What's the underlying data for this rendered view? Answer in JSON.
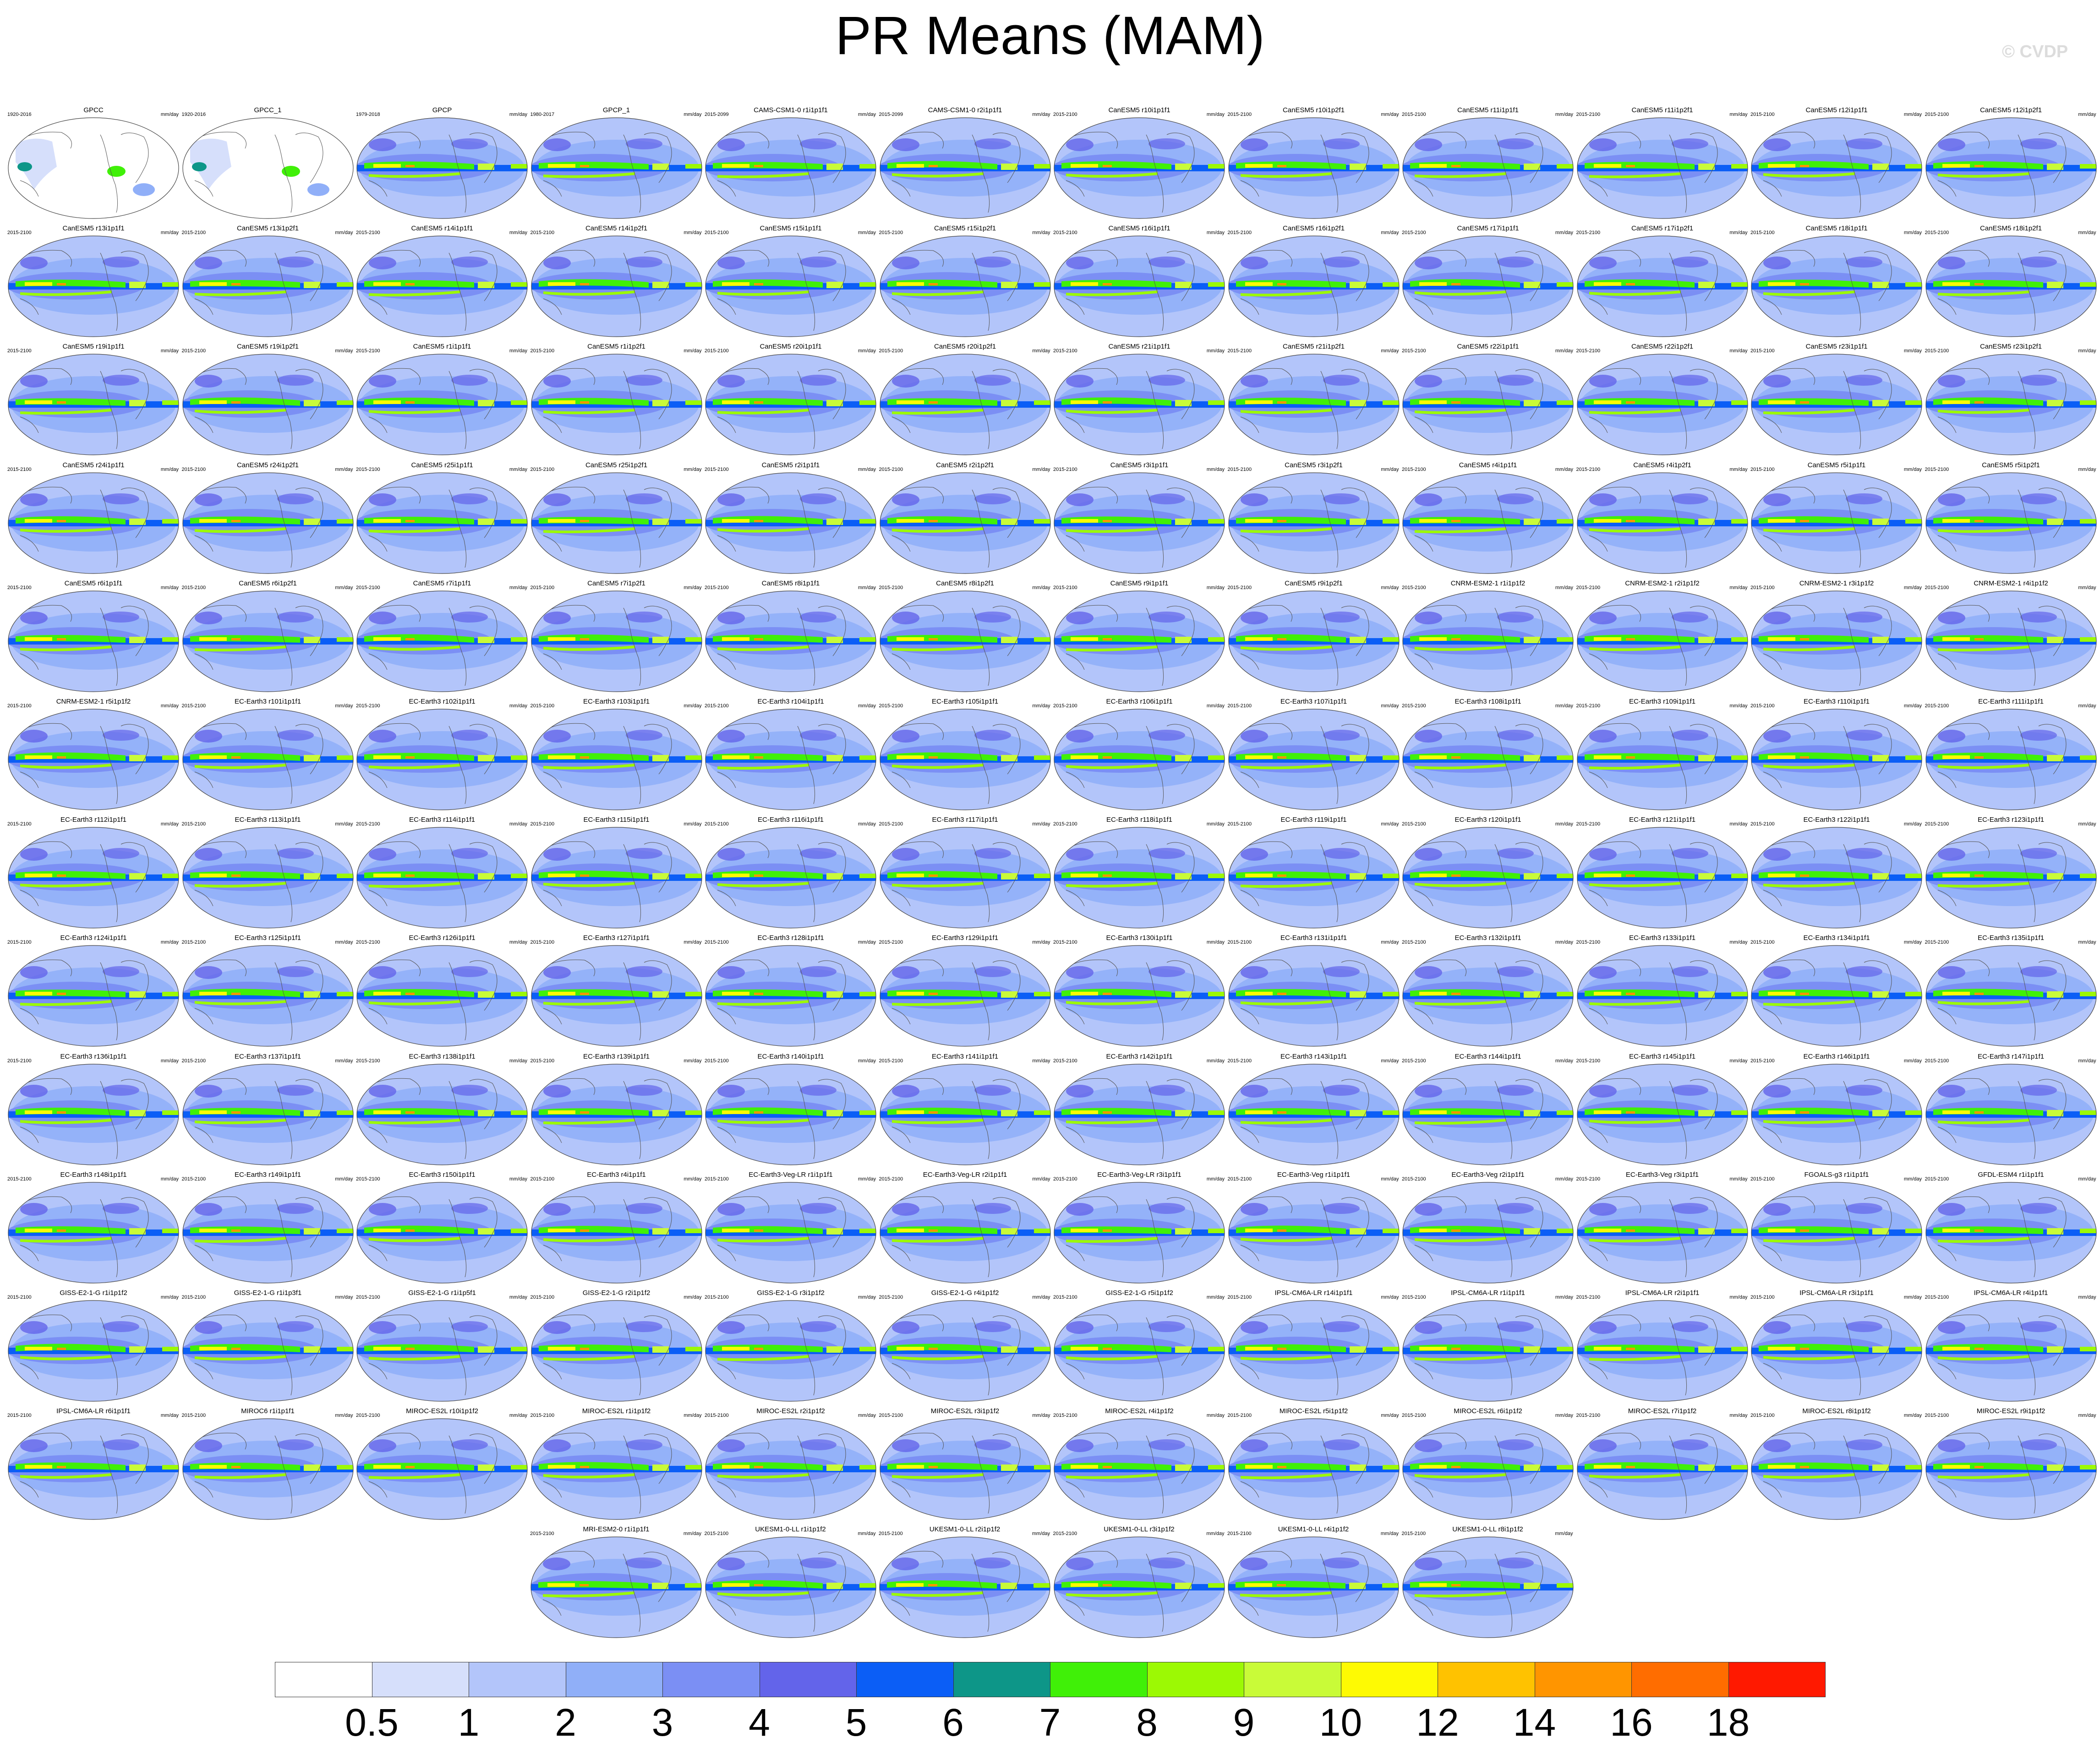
{
  "title": "PR Means (MAM)",
  "watermark": "© CVDP",
  "chart_data": {
    "type": "heatmap",
    "title": "PR Means (MAM)",
    "units": "mm/day",
    "projection": "global map grid of precipitation means",
    "colorbar": {
      "levels": [
        "0.5",
        "1",
        "2",
        "3",
        "4",
        "5",
        "6",
        "7",
        "8",
        "9",
        "10",
        "12",
        "14",
        "16",
        "18"
      ],
      "colors": [
        "#ffffff",
        "#d6dffb",
        "#b3c5fa",
        "#90aff8",
        "#7b8ff4",
        "#6364ea",
        "#0b5ef6",
        "#0d9688",
        "#40f008",
        "#9cf904",
        "#c9fb38",
        "#fefa03",
        "#ffc200",
        "#ff9500",
        "#ff6d00",
        "#ff1900"
      ]
    },
    "panels": [
      {
        "title": "GPCC",
        "years": "1920-2016",
        "units": "mm/day"
      },
      {
        "title": "GPCC_1",
        "years": "1920-2016",
        "units": ""
      },
      {
        "title": "GPCP",
        "years": "1979-2018",
        "units": "mm/day"
      },
      {
        "title": "GPCP_1",
        "years": "1980-2017",
        "units": "mm/day"
      },
      {
        "title": "CAMS-CSM1-0 r1i1p1f1",
        "years": "2015-2099",
        "units": "mm/day"
      },
      {
        "title": "CAMS-CSM1-0 r2i1p1f1",
        "years": "2015-2099",
        "units": "mm/day"
      },
      {
        "title": "CanESM5 r10i1p1f1",
        "years": "2015-2100",
        "units": "mm/day"
      },
      {
        "title": "CanESM5 r10i1p2f1",
        "years": "2015-2100",
        "units": "mm/day"
      },
      {
        "title": "CanESM5 r11i1p1f1",
        "years": "2015-2100",
        "units": "mm/day"
      },
      {
        "title": "CanESM5 r11i1p2f1",
        "years": "2015-2100",
        "units": "mm/day"
      },
      {
        "title": "CanESM5 r12i1p1f1",
        "years": "2015-2100",
        "units": "mm/day"
      },
      {
        "title": "CanESM5 r12i1p2f1",
        "years": "2015-2100",
        "units": "mm/day"
      },
      {
        "title": "CanESM5 r13i1p1f1",
        "years": "2015-2100",
        "units": "mm/day"
      },
      {
        "title": "CanESM5 r13i1p2f1",
        "years": "2015-2100",
        "units": "mm/day"
      },
      {
        "title": "CanESM5 r14i1p1f1",
        "years": "2015-2100",
        "units": "mm/day"
      },
      {
        "title": "CanESM5 r14i1p2f1",
        "years": "2015-2100",
        "units": "mm/day"
      },
      {
        "title": "CanESM5 r15i1p1f1",
        "years": "2015-2100",
        "units": "mm/day"
      },
      {
        "title": "CanESM5 r15i1p2f1",
        "years": "2015-2100",
        "units": "mm/day"
      },
      {
        "title": "CanESM5 r16i1p1f1",
        "years": "2015-2100",
        "units": "mm/day"
      },
      {
        "title": "CanESM5 r16i1p2f1",
        "years": "2015-2100",
        "units": "mm/day"
      },
      {
        "title": "CanESM5 r17i1p1f1",
        "years": "2015-2100",
        "units": "mm/day"
      },
      {
        "title": "CanESM5 r17i1p2f1",
        "years": "2015-2100",
        "units": "mm/day"
      },
      {
        "title": "CanESM5 r18i1p1f1",
        "years": "2015-2100",
        "units": "mm/day"
      },
      {
        "title": "CanESM5 r18i1p2f1",
        "years": "2015-2100",
        "units": "mm/day"
      },
      {
        "title": "CanESM5 r19i1p1f1",
        "years": "2015-2100",
        "units": "mm/day"
      },
      {
        "title": "CanESM5 r19i1p2f1",
        "years": "2015-2100",
        "units": "mm/day"
      },
      {
        "title": "CanESM5 r1i1p1f1",
        "years": "2015-2100",
        "units": "mm/day"
      },
      {
        "title": "CanESM5 r1i1p2f1",
        "years": "2015-2100",
        "units": "mm/day"
      },
      {
        "title": "CanESM5 r20i1p1f1",
        "years": "2015-2100",
        "units": "mm/day"
      },
      {
        "title": "CanESM5 r20i1p2f1",
        "years": "2015-2100",
        "units": "mm/day"
      },
      {
        "title": "CanESM5 r21i1p1f1",
        "years": "2015-2100",
        "units": "mm/day"
      },
      {
        "title": "CanESM5 r21i1p2f1",
        "years": "2015-2100",
        "units": "mm/day"
      },
      {
        "title": "CanESM5 r22i1p1f1",
        "years": "2015-2100",
        "units": "mm/day"
      },
      {
        "title": "CanESM5 r22i1p2f1",
        "years": "2015-2100",
        "units": "mm/day"
      },
      {
        "title": "CanESM5 r23i1p1f1",
        "years": "2015-2100",
        "units": "mm/day"
      },
      {
        "title": "CanESM5 r23i1p2f1",
        "years": "2015-2100",
        "units": "mm/day"
      },
      {
        "title": "CanESM5 r24i1p1f1",
        "years": "2015-2100",
        "units": "mm/day"
      },
      {
        "title": "CanESM5 r24i1p2f1",
        "years": "2015-2100",
        "units": "mm/day"
      },
      {
        "title": "CanESM5 r25i1p1f1",
        "years": "2015-2100",
        "units": "mm/day"
      },
      {
        "title": "CanESM5 r25i1p2f1",
        "years": "2015-2100",
        "units": "mm/day"
      },
      {
        "title": "CanESM5 r2i1p1f1",
        "years": "2015-2100",
        "units": "mm/day"
      },
      {
        "title": "CanESM5 r2i1p2f1",
        "years": "2015-2100",
        "units": "mm/day"
      },
      {
        "title": "CanESM5 r3i1p1f1",
        "years": "2015-2100",
        "units": "mm/day"
      },
      {
        "title": "CanESM5 r3i1p2f1",
        "years": "2015-2100",
        "units": "mm/day"
      },
      {
        "title": "CanESM5 r4i1p1f1",
        "years": "2015-2100",
        "units": "mm/day"
      },
      {
        "title": "CanESM5 r4i1p2f1",
        "years": "2015-2100",
        "units": "mm/day"
      },
      {
        "title": "CanESM5 r5i1p1f1",
        "years": "2015-2100",
        "units": "mm/day"
      },
      {
        "title": "CanESM5 r5i1p2f1",
        "years": "2015-2100",
        "units": "mm/day"
      },
      {
        "title": "CanESM5 r6i1p1f1",
        "years": "2015-2100",
        "units": "mm/day"
      },
      {
        "title": "CanESM5 r6i1p2f1",
        "years": "2015-2100",
        "units": "mm/day"
      },
      {
        "title": "CanESM5 r7i1p1f1",
        "years": "2015-2100",
        "units": "mm/day"
      },
      {
        "title": "CanESM5 r7i1p2f1",
        "years": "2015-2100",
        "units": "mm/day"
      },
      {
        "title": "CanESM5 r8i1p1f1",
        "years": "2015-2100",
        "units": "mm/day"
      },
      {
        "title": "CanESM5 r8i1p2f1",
        "years": "2015-2100",
        "units": "mm/day"
      },
      {
        "title": "CanESM5 r9i1p1f1",
        "years": "2015-2100",
        "units": "mm/day"
      },
      {
        "title": "CanESM5 r9i1p2f1",
        "years": "2015-2100",
        "units": "mm/day"
      },
      {
        "title": "CNRM-ESM2-1 r1i1p1f2",
        "years": "2015-2100",
        "units": "mm/day"
      },
      {
        "title": "CNRM-ESM2-1 r2i1p1f2",
        "years": "2015-2100",
        "units": "mm/day"
      },
      {
        "title": "CNRM-ESM2-1 r3i1p1f2",
        "years": "2015-2100",
        "units": "mm/day"
      },
      {
        "title": "CNRM-ESM2-1 r4i1p1f2",
        "years": "2015-2100",
        "units": "mm/day"
      },
      {
        "title": "CNRM-ESM2-1 r5i1p1f2",
        "years": "2015-2100",
        "units": "mm/day"
      },
      {
        "title": "EC-Earth3 r101i1p1f1",
        "years": "2015-2100",
        "units": "mm/day"
      },
      {
        "title": "EC-Earth3 r102i1p1f1",
        "years": "2015-2100",
        "units": "mm/day"
      },
      {
        "title": "EC-Earth3 r103i1p1f1",
        "years": "2015-2100",
        "units": "mm/day"
      },
      {
        "title": "EC-Earth3 r104i1p1f1",
        "years": "2015-2100",
        "units": "mm/day"
      },
      {
        "title": "EC-Earth3 r105i1p1f1",
        "years": "2015-2100",
        "units": "mm/day"
      },
      {
        "title": "EC-Earth3 r106i1p1f1",
        "years": "2015-2100",
        "units": "mm/day"
      },
      {
        "title": "EC-Earth3 r107i1p1f1",
        "years": "2015-2100",
        "units": "mm/day"
      },
      {
        "title": "EC-Earth3 r108i1p1f1",
        "years": "2015-2100",
        "units": "mm/day"
      },
      {
        "title": "EC-Earth3 r109i1p1f1",
        "years": "2015-2100",
        "units": "mm/day"
      },
      {
        "title": "EC-Earth3 r110i1p1f1",
        "years": "2015-2100",
        "units": "mm/day"
      },
      {
        "title": "EC-Earth3 r111i1p1f1",
        "years": "2015-2100",
        "units": "mm/day"
      },
      {
        "title": "EC-Earth3 r112i1p1f1",
        "years": "2015-2100",
        "units": "mm/day"
      },
      {
        "title": "EC-Earth3 r113i1p1f1",
        "years": "2015-2100",
        "units": "mm/day"
      },
      {
        "title": "EC-Earth3 r114i1p1f1",
        "years": "2015-2100",
        "units": "mm/day"
      },
      {
        "title": "EC-Earth3 r115i1p1f1",
        "years": "2015-2100",
        "units": "mm/day"
      },
      {
        "title": "EC-Earth3 r116i1p1f1",
        "years": "2015-2100",
        "units": "mm/day"
      },
      {
        "title": "EC-Earth3 r117i1p1f1",
        "years": "2015-2100",
        "units": "mm/day"
      },
      {
        "title": "EC-Earth3 r118i1p1f1",
        "years": "2015-2100",
        "units": "mm/day"
      },
      {
        "title": "EC-Earth3 r119i1p1f1",
        "years": "2015-2100",
        "units": "mm/day"
      },
      {
        "title": "EC-Earth3 r120i1p1f1",
        "years": "2015-2100",
        "units": "mm/day"
      },
      {
        "title": "EC-Earth3 r121i1p1f1",
        "years": "2015-2100",
        "units": "mm/day"
      },
      {
        "title": "EC-Earth3 r122i1p1f1",
        "years": "2015-2100",
        "units": "mm/day"
      },
      {
        "title": "EC-Earth3 r123i1p1f1",
        "years": "2015-2100",
        "units": "mm/day"
      },
      {
        "title": "EC-Earth3 r124i1p1f1",
        "years": "2015-2100",
        "units": "mm/day"
      },
      {
        "title": "EC-Earth3 r125i1p1f1",
        "years": "2015-2100",
        "units": "mm/day"
      },
      {
        "title": "EC-Earth3 r126i1p1f1",
        "years": "2015-2100",
        "units": "mm/day"
      },
      {
        "title": "EC-Earth3 r127i1p1f1",
        "years": "2015-2100",
        "units": "mm/day"
      },
      {
        "title": "EC-Earth3 r128i1p1f1",
        "years": "2015-2100",
        "units": "mm/day"
      },
      {
        "title": "EC-Earth3 r129i1p1f1",
        "years": "2015-2100",
        "units": "mm/day"
      },
      {
        "title": "EC-Earth3 r130i1p1f1",
        "years": "2015-2100",
        "units": "mm/day"
      },
      {
        "title": "EC-Earth3 r131i1p1f1",
        "years": "2015-2100",
        "units": "mm/day"
      },
      {
        "title": "EC-Earth3 r132i1p1f1",
        "years": "2015-2100",
        "units": "mm/day"
      },
      {
        "title": "EC-Earth3 r133i1p1f1",
        "years": "2015-2100",
        "units": "mm/day"
      },
      {
        "title": "EC-Earth3 r134i1p1f1",
        "years": "2015-2100",
        "units": "mm/day"
      },
      {
        "title": "EC-Earth3 r135i1p1f1",
        "years": "2015-2100",
        "units": "mm/day"
      },
      {
        "title": "EC-Earth3 r136i1p1f1",
        "years": "2015-2100",
        "units": "mm/day"
      },
      {
        "title": "EC-Earth3 r137i1p1f1",
        "years": "2015-2100",
        "units": "mm/day"
      },
      {
        "title": "EC-Earth3 r138i1p1f1",
        "years": "2015-2100",
        "units": "mm/day"
      },
      {
        "title": "EC-Earth3 r139i1p1f1",
        "years": "2015-2100",
        "units": "mm/day"
      },
      {
        "title": "EC-Earth3 r140i1p1f1",
        "years": "2015-2100",
        "units": "mm/day"
      },
      {
        "title": "EC-Earth3 r141i1p1f1",
        "years": "2015-2100",
        "units": "mm/day"
      },
      {
        "title": "EC-Earth3 r142i1p1f1",
        "years": "2015-2100",
        "units": "mm/day"
      },
      {
        "title": "EC-Earth3 r143i1p1f1",
        "years": "2015-2100",
        "units": "mm/day"
      },
      {
        "title": "EC-Earth3 r144i1p1f1",
        "years": "2015-2100",
        "units": "mm/day"
      },
      {
        "title": "EC-Earth3 r145i1p1f1",
        "years": "2015-2100",
        "units": "mm/day"
      },
      {
        "title": "EC-Earth3 r146i1p1f1",
        "years": "2015-2100",
        "units": "mm/day"
      },
      {
        "title": "EC-Earth3 r147i1p1f1",
        "years": "2015-2100",
        "units": "mm/day"
      },
      {
        "title": "EC-Earth3 r148i1p1f1",
        "years": "2015-2100",
        "units": "mm/day"
      },
      {
        "title": "EC-Earth3 r149i1p1f1",
        "years": "2015-2100",
        "units": "mm/day"
      },
      {
        "title": "EC-Earth3 r150i1p1f1",
        "years": "2015-2100",
        "units": "mm/day"
      },
      {
        "title": "EC-Earth3 r4i1p1f1",
        "years": "2015-2100",
        "units": "mm/day"
      },
      {
        "title": "EC-Earth3-Veg-LR r1i1p1f1",
        "years": "2015-2100",
        "units": "mm/day"
      },
      {
        "title": "EC-Earth3-Veg-LR r2i1p1f1",
        "years": "2015-2100",
        "units": "mm/day"
      },
      {
        "title": "EC-Earth3-Veg-LR r3i1p1f1",
        "years": "2015-2100",
        "units": "mm/day"
      },
      {
        "title": "EC-Earth3-Veg r1i1p1f1",
        "years": "2015-2100",
        "units": "mm/day"
      },
      {
        "title": "EC-Earth3-Veg r2i1p1f1",
        "years": "2015-2100",
        "units": "mm/day"
      },
      {
        "title": "EC-Earth3-Veg r3i1p1f1",
        "years": "2015-2100",
        "units": "mm/day"
      },
      {
        "title": "FGOALS-g3 r1i1p1f1",
        "years": "2015-2100",
        "units": "mm/day"
      },
      {
        "title": "GFDL-ESM4 r1i1p1f1",
        "years": "2015-2100",
        "units": "mm/day"
      },
      {
        "title": "GISS-E2-1-G r1i1p1f2",
        "years": "2015-2100",
        "units": "mm/day"
      },
      {
        "title": "GISS-E2-1-G r1i1p3f1",
        "years": "2015-2100",
        "units": "mm/day"
      },
      {
        "title": "GISS-E2-1-G r1i1p5f1",
        "years": "2015-2100",
        "units": "mm/day"
      },
      {
        "title": "GISS-E2-1-G r2i1p1f2",
        "years": "2015-2100",
        "units": "mm/day"
      },
      {
        "title": "GISS-E2-1-G r3i1p1f2",
        "years": "2015-2100",
        "units": "mm/day"
      },
      {
        "title": "GISS-E2-1-G r4i1p1f2",
        "years": "2015-2100",
        "units": "mm/day"
      },
      {
        "title": "GISS-E2-1-G r5i1p1f2",
        "years": "2015-2100",
        "units": "mm/day"
      },
      {
        "title": "IPSL-CM6A-LR r14i1p1f1",
        "years": "2015-2100",
        "units": "mm/day"
      },
      {
        "title": "IPSL-CM6A-LR r1i1p1f1",
        "years": "2015-2100",
        "units": "mm/day"
      },
      {
        "title": "IPSL-CM6A-LR r2i1p1f1",
        "years": "2015-2100",
        "units": "mm/day"
      },
      {
        "title": "IPSL-CM6A-LR r3i1p1f1",
        "years": "2015-2100",
        "units": "mm/day"
      },
      {
        "title": "IPSL-CM6A-LR r4i1p1f1",
        "years": "2015-2100",
        "units": "mm/day"
      },
      {
        "title": "IPSL-CM6A-LR r6i1p1f1",
        "years": "2015-2100",
        "units": "mm/day"
      },
      {
        "title": "MIROC6 r1i1p1f1",
        "years": "2015-2100",
        "units": "mm/day"
      },
      {
        "title": "MIROC-ES2L r10i1p1f2",
        "years": "2015-2100",
        "units": "mm/day"
      },
      {
        "title": "MIROC-ES2L r1i1p1f2",
        "years": "2015-2100",
        "units": "mm/day"
      },
      {
        "title": "MIROC-ES2L r2i1p1f2",
        "years": "2015-2100",
        "units": "mm/day"
      },
      {
        "title": "MIROC-ES2L r3i1p1f2",
        "years": "2015-2100",
        "units": "mm/day"
      },
      {
        "title": "MIROC-ES2L r4i1p1f2",
        "years": "2015-2100",
        "units": "mm/day"
      },
      {
        "title": "MIROC-ES2L r5i1p1f2",
        "years": "2015-2100",
        "units": "mm/day"
      },
      {
        "title": "MIROC-ES2L r6i1p1f2",
        "years": "2015-2100",
        "units": "mm/day"
      },
      {
        "title": "MIROC-ES2L r7i1p1f2",
        "years": "2015-2100",
        "units": "mm/day"
      },
      {
        "title": "MIROC-ES2L r8i1p1f2",
        "years": "2015-2100",
        "units": "mm/day"
      },
      {
        "title": "MIROC-ES2L r9i1p1f2",
        "years": "2015-2100",
        "units": "mm/day"
      },
      {
        "title": "MRI-ESM2-0 r1i1p1f1",
        "years": "2015-2100",
        "units": "mm/day"
      },
      {
        "title": "UKESM1-0-LL r1i1p1f2",
        "years": "2015-2100",
        "units": "mm/day"
      },
      {
        "title": "UKESM1-0-LL r2i1p1f2",
        "years": "2015-2100",
        "units": "mm/day"
      },
      {
        "title": "UKESM1-0-LL r3i1p1f2",
        "years": "2015-2100",
        "units": "mm/day"
      },
      {
        "title": "UKESM1-0-LL r4i1p1f2",
        "years": "2015-2100",
        "units": "mm/day"
      },
      {
        "title": "UKESM1-0-LL r8i1p1f2",
        "years": "2015-2100",
        "units": "mm/day"
      }
    ]
  }
}
